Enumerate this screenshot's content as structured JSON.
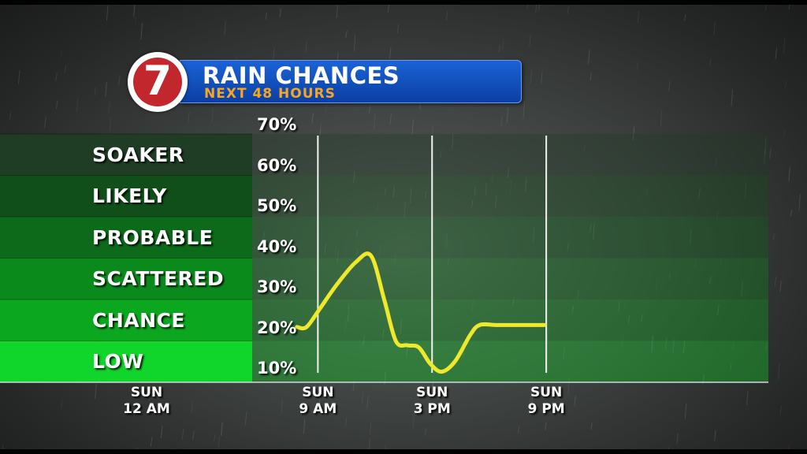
{
  "header": {
    "logo_text": "7",
    "title": "RAIN CHANCES",
    "subtitle": "NEXT 48 HOURS"
  },
  "categories": [
    {
      "label": "SOAKER",
      "color": "#1f3d25"
    },
    {
      "label": "LIKELY",
      "color": "#114f1a"
    },
    {
      "label": "PROBABLE",
      "color": "#0c6a1a"
    },
    {
      "label": "SCATTERED",
      "color": "#0b8a1c"
    },
    {
      "label": "CHANCE",
      "color": "#0ba81f"
    },
    {
      "label": "LOW",
      "color": "#10d62b"
    }
  ],
  "colors": {
    "line": "#f0e82a",
    "banner": "#1450c0",
    "subtitle": "#f5a623",
    "logo": "#c1272d"
  },
  "chart_data": {
    "type": "line",
    "title": "RAIN CHANCES",
    "subtitle": "NEXT 48 HOURS",
    "xlabel": "",
    "ylabel": "",
    "ylim": [
      10,
      70
    ],
    "y_ticks": [
      "70%",
      "60%",
      "50%",
      "40%",
      "30%",
      "20%",
      "10%"
    ],
    "x_ticks": [
      {
        "day": "SUN",
        "time": "12 AM"
      },
      {
        "day": "SUN",
        "time": "9 AM"
      },
      {
        "day": "SUN",
        "time": "3 PM"
      },
      {
        "day": "SUN",
        "time": "9 PM"
      }
    ],
    "x_hours": [
      0,
      9,
      15,
      21
    ],
    "series": [
      {
        "hours": [
          7.9,
          8.4,
          9.1,
          10.0,
          11.0,
          11.8,
          12.5,
          13.1,
          13.7,
          14.3,
          14.9,
          15.5,
          16.2,
          17.0,
          17.5,
          18.4,
          19.5,
          20.3,
          20.9
        ],
        "values": [
          20.5,
          20.5,
          25,
          31,
          36.5,
          38,
          27,
          17,
          16,
          15.5,
          11.5,
          9.5,
          12,
          18.5,
          21,
          21,
          21,
          21,
          21
        ]
      }
    ]
  }
}
